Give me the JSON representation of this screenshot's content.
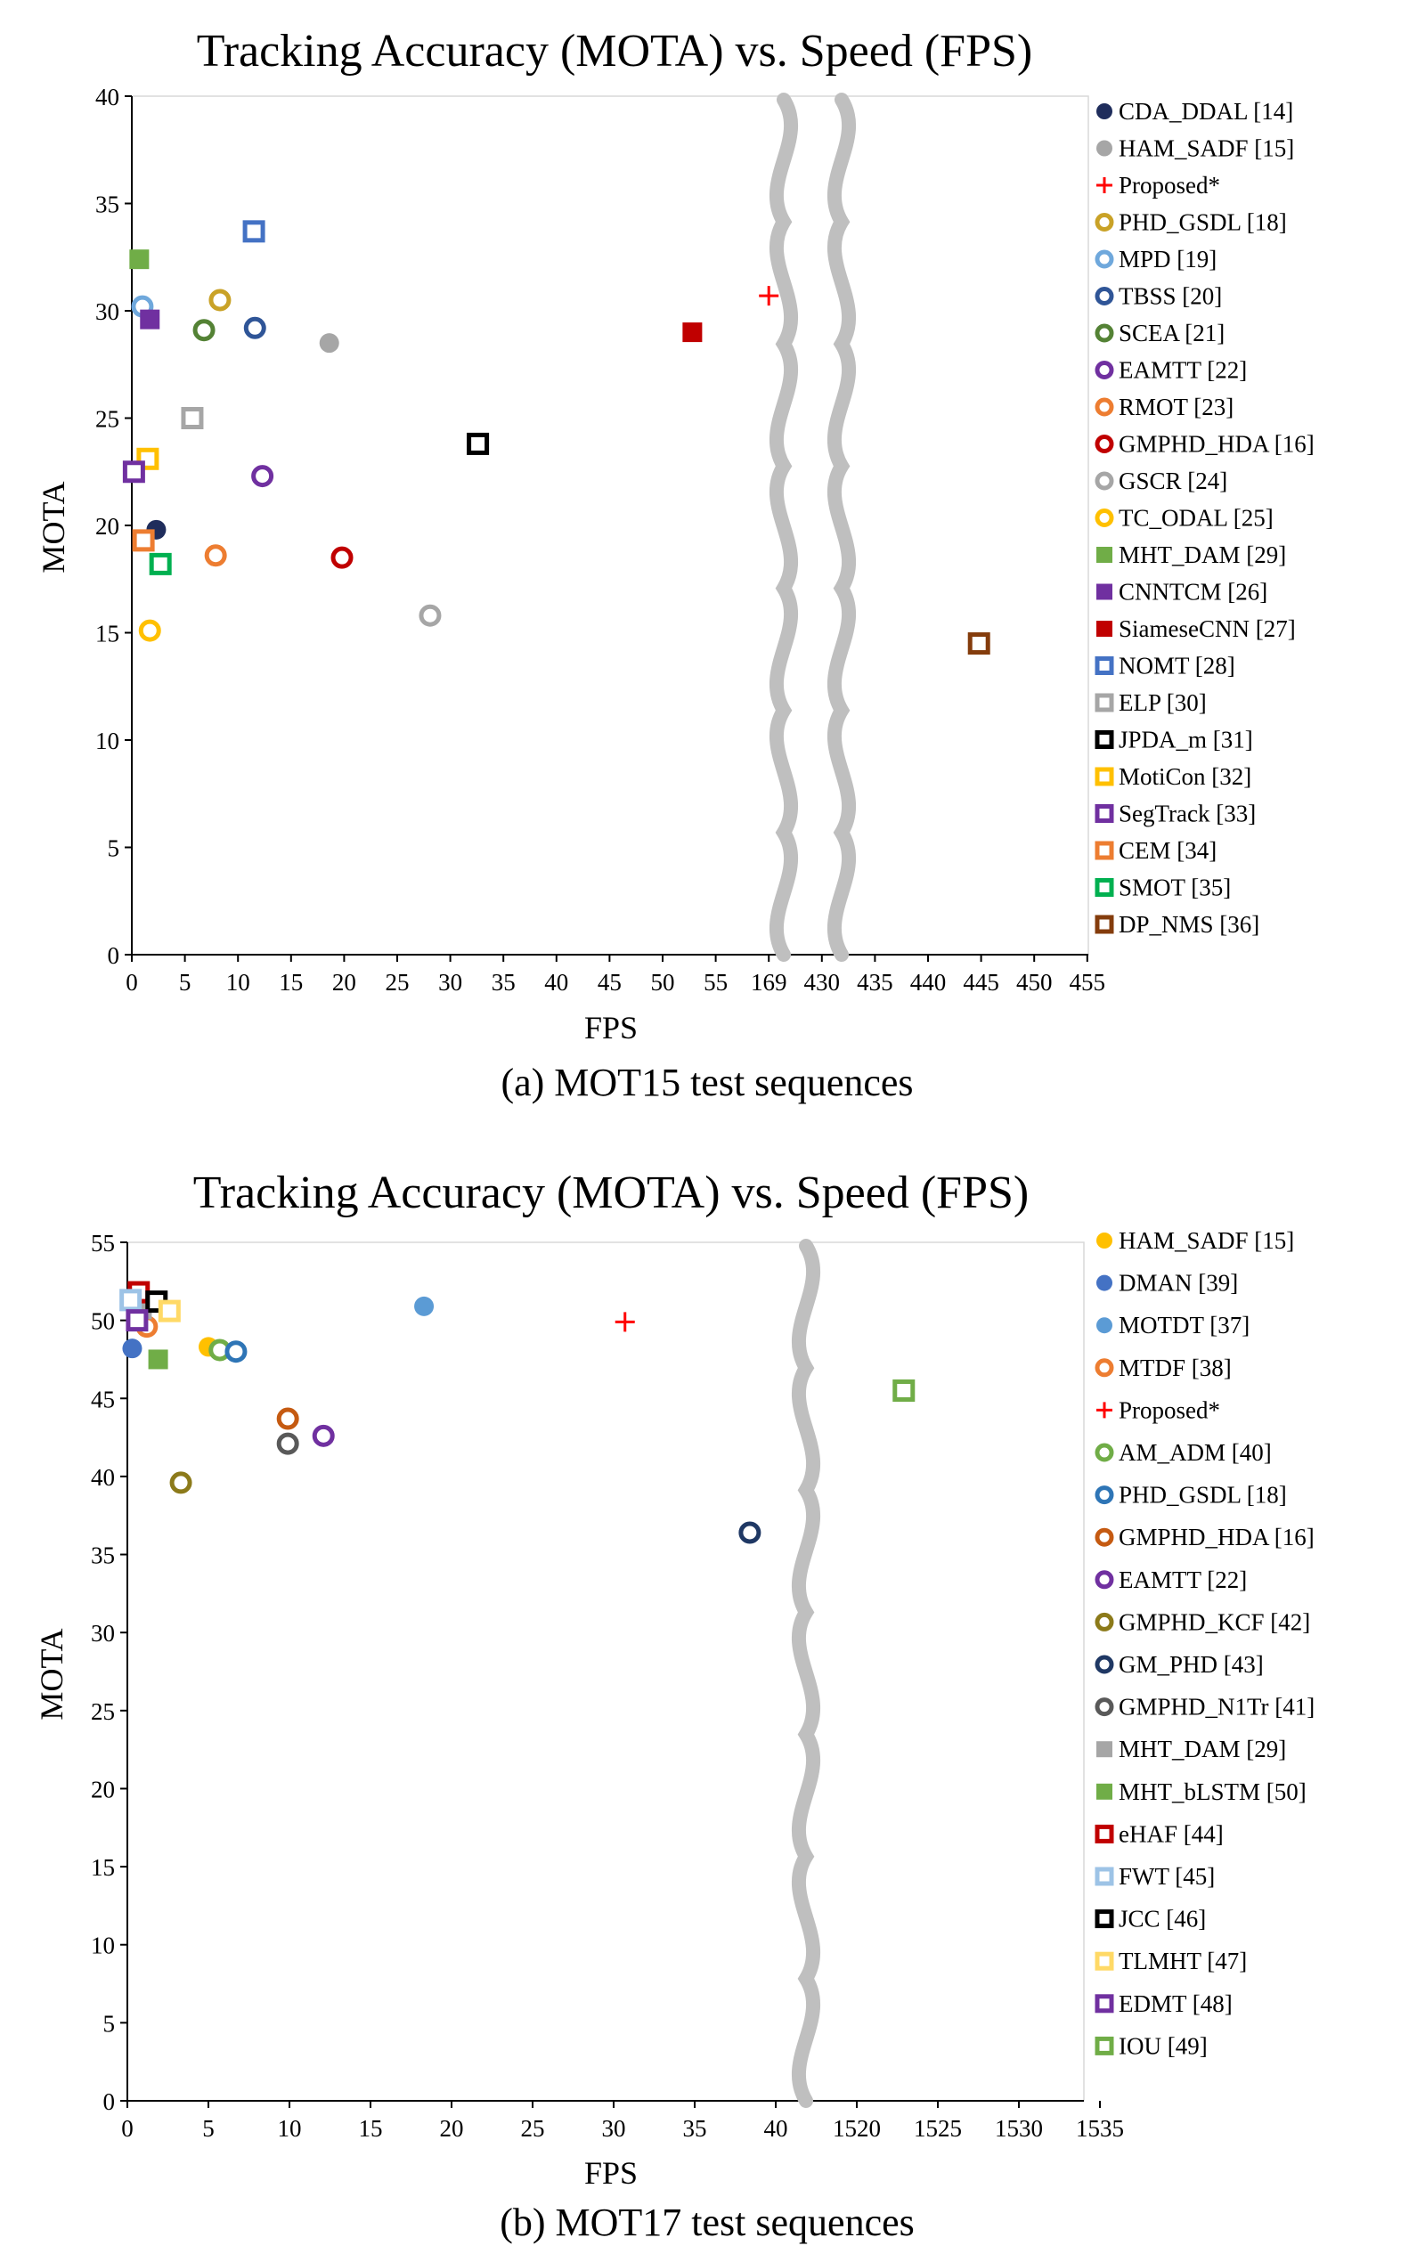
{
  "chart_data": [
    {
      "type": "scatter",
      "title": "Tracking Accuracy (MOTA) vs. Speed (FPS)",
      "caption": "(a) MOT15 test sequences",
      "xlabel": "FPS",
      "ylabel": "MOTA",
      "ylim": [
        0,
        40
      ],
      "yticks": [
        "0",
        "5",
        "10",
        "15",
        "20",
        "25",
        "30",
        "35",
        "40"
      ],
      "xticks": [
        "0",
        "5",
        "10",
        "15",
        "20",
        "25",
        "30",
        "35",
        "40",
        "45",
        "50",
        "55",
        "169",
        "430",
        "435",
        "440",
        "445",
        "450",
        "455"
      ],
      "x_axis_note": "broken x axis: 0-55, then 169, then 430-455",
      "grid": false,
      "legend_position": "right",
      "series": [
        {
          "name": "CDA_DDAL [14]",
          "x": 2.3,
          "y": 19.8,
          "marker": "circle-filled",
          "color": "#1f2d5c"
        },
        {
          "name": "HAM_SADF [15]",
          "x": 18.6,
          "y": 28.5,
          "marker": "circle-filled",
          "color": "#a6a6a6"
        },
        {
          "name": "Proposed*",
          "x": 169,
          "y": 30.7,
          "marker": "plus",
          "color": "#ff0000"
        },
        {
          "name": "PHD_GSDL [18]",
          "x": 8.3,
          "y": 30.5,
          "marker": "circle-open",
          "color": "#c9a227"
        },
        {
          "name": "MPD [19]",
          "x": 1.0,
          "y": 30.2,
          "marker": "circle-open",
          "color": "#6fa8dc"
        },
        {
          "name": "TBSS [20]",
          "x": 11.6,
          "y": 29.2,
          "marker": "circle-open",
          "color": "#2f5597"
        },
        {
          "name": "SCEA [21]",
          "x": 6.8,
          "y": 29.1,
          "marker": "circle-open",
          "color": "#548235"
        },
        {
          "name": "EAMTT [22]",
          "x": 12.3,
          "y": 22.3,
          "marker": "circle-open",
          "color": "#7030a0"
        },
        {
          "name": "RMOT [23]",
          "x": 7.9,
          "y": 18.6,
          "marker": "circle-open",
          "color": "#ed7d31"
        },
        {
          "name": "GMPHD_HDA [16]",
          "x": 19.8,
          "y": 18.5,
          "marker": "circle-open",
          "color": "#c00000"
        },
        {
          "name": "GSCR [24]",
          "x": 28.1,
          "y": 15.8,
          "marker": "circle-open",
          "color": "#a6a6a6"
        },
        {
          "name": "TC_ODAL [25]",
          "x": 1.7,
          "y": 15.1,
          "marker": "circle-open",
          "color": "#ffc000"
        },
        {
          "name": "MHT_DAM [29]",
          "x": 0.7,
          "y": 32.4,
          "marker": "square-filled",
          "color": "#70ad47"
        },
        {
          "name": "CNNTCM [26]",
          "x": 1.7,
          "y": 29.6,
          "marker": "square-filled",
          "color": "#7030a0"
        },
        {
          "name": "SiameseCNN [27]",
          "x": 52.8,
          "y": 29.0,
          "marker": "square-filled",
          "color": "#c00000"
        },
        {
          "name": "NOMT [28]",
          "x": 11.5,
          "y": 33.7,
          "marker": "square-open",
          "color": "#4472c4"
        },
        {
          "name": "ELP [30]",
          "x": 5.7,
          "y": 25.0,
          "marker": "square-open",
          "color": "#a6a6a6"
        },
        {
          "name": "JPDA_m [31]",
          "x": 32.6,
          "y": 23.8,
          "marker": "square-open",
          "color": "#000000"
        },
        {
          "name": "MotiCon [32]",
          "x": 1.5,
          "y": 23.1,
          "marker": "square-open",
          "color": "#ffc000"
        },
        {
          "name": "SegTrack [33]",
          "x": 0.2,
          "y": 22.5,
          "marker": "square-open",
          "color": "#7030a0"
        },
        {
          "name": "CEM [34]",
          "x": 1.1,
          "y": 19.3,
          "marker": "square-open",
          "color": "#ed7d31"
        },
        {
          "name": "SMOT [35]",
          "x": 2.7,
          "y": 18.2,
          "marker": "square-open",
          "color": "#00b050"
        },
        {
          "name": "DP_NMS [36]",
          "x": 444.8,
          "y": 14.5,
          "marker": "square-open",
          "color": "#843c0c"
        }
      ]
    },
    {
      "type": "scatter",
      "title": "Tracking Accuracy (MOTA) vs. Speed (FPS)",
      "caption": "(b) MOT17 test sequences",
      "xlabel": "FPS",
      "ylabel": "MOTA",
      "ylim": [
        0,
        55
      ],
      "yticks": [
        "0",
        "5",
        "10",
        "15",
        "20",
        "25",
        "30",
        "35",
        "40",
        "45",
        "50",
        "55"
      ],
      "xticks": [
        "0",
        "5",
        "10",
        "15",
        "20",
        "25",
        "30",
        "35",
        "40",
        "1520",
        "1525",
        "1530",
        "1535"
      ],
      "x_axis_note": "broken x axis: 0-40, then 1520-1535",
      "grid": false,
      "legend_position": "right",
      "series": [
        {
          "name": "HAM_SADF [15]",
          "x": 5.0,
          "y": 48.3,
          "marker": "circle-filled",
          "color": "#ffc000"
        },
        {
          "name": "DMAN [39]",
          "x": 0.3,
          "y": 48.2,
          "marker": "circle-filled",
          "color": "#4472c4"
        },
        {
          "name": "MOTDT [37]",
          "x": 18.3,
          "y": 50.9,
          "marker": "circle-filled",
          "color": "#5b9bd5"
        },
        {
          "name": "MTDF [38]",
          "x": 1.2,
          "y": 49.6,
          "marker": "circle-open",
          "color": "#ed7d31"
        },
        {
          "name": "Proposed*",
          "x": 30.7,
          "y": 49.9,
          "marker": "plus",
          "color": "#ff0000"
        },
        {
          "name": "AM_ADM [40]",
          "x": 5.7,
          "y": 48.1,
          "marker": "circle-open",
          "color": "#70ad47"
        },
        {
          "name": "PHD_GSDL [18]",
          "x": 6.7,
          "y": 48.0,
          "marker": "circle-open",
          "color": "#2e75b6"
        },
        {
          "name": "GMPHD_HDA [16]",
          "x": 9.9,
          "y": 43.7,
          "marker": "circle-open",
          "color": "#c55a11"
        },
        {
          "name": "EAMTT [22]",
          "x": 12.1,
          "y": 42.6,
          "marker": "circle-open",
          "color": "#7030a0"
        },
        {
          "name": "GMPHD_KCF [42]",
          "x": 3.3,
          "y": 39.6,
          "marker": "circle-open",
          "color": "#8c7a1a"
        },
        {
          "name": "GM_PHD [43]",
          "x": 38.4,
          "y": 36.4,
          "marker": "circle-open",
          "color": "#1f3864"
        },
        {
          "name": "GMPHD_N1Tr [41]",
          "x": 9.9,
          "y": 42.1,
          "marker": "circle-open",
          "color": "#595959"
        },
        {
          "name": "MHT_DAM [29]",
          "x": 0.9,
          "y": 50.7,
          "marker": "square-filled",
          "color": "#a6a6a6"
        },
        {
          "name": "MHT_bLSTM [50]",
          "x": 1.9,
          "y": 47.5,
          "marker": "square-filled",
          "color": "#70ad47"
        },
        {
          "name": "eHAF [44]",
          "x": 0.7,
          "y": 51.8,
          "marker": "square-open",
          "color": "#c00000"
        },
        {
          "name": "FWT [45]",
          "x": 0.2,
          "y": 51.3,
          "marker": "square-open",
          "color": "#9dc3e6"
        },
        {
          "name": "JCC [46]",
          "x": 1.8,
          "y": 51.2,
          "marker": "square-open",
          "color": "#000000"
        },
        {
          "name": "TLMHT [47]",
          "x": 2.6,
          "y": 50.6,
          "marker": "square-open",
          "color": "#ffd966"
        },
        {
          "name": "EDMT [48]",
          "x": 0.6,
          "y": 50.0,
          "marker": "square-open",
          "color": "#7030a0"
        },
        {
          "name": "IOU [49]",
          "x": 1522.9,
          "y": 45.5,
          "marker": "square-open",
          "color": "#70ad47"
        }
      ]
    }
  ]
}
